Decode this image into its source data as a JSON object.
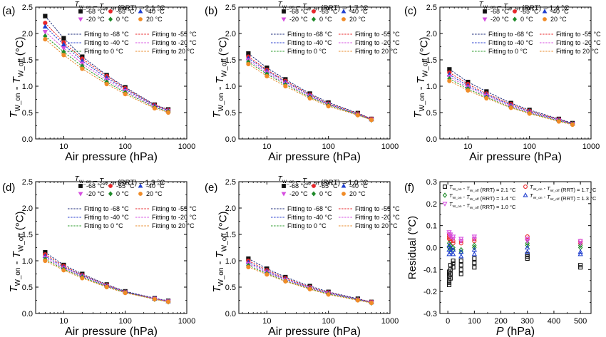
{
  "figure": {
    "x_label": "Air pressure (hPa)",
    "y_label": "T_W_on - T_W_off (°C)",
    "legend_markers": [
      "-68 °C",
      "-55 °C",
      "-40 °C",
      "-20 °C",
      "0 °C",
      "20 °C"
    ],
    "legend_fits": [
      "Fitting to -68 °C",
      "Fitting to -55 °C",
      "Fitting to -40 °C",
      "Fitting to -20 °C",
      "Fitting to   0 °C",
      "Fitting to  20 °C"
    ],
    "colors": {
      "-68": "#111111",
      "-55": "#e8262a",
      "-40": "#1f3fcf",
      "-20": "#d64fe0",
      "0": "#1f8a2a",
      "20": "#f08c28"
    },
    "fit_colors": {
      "-68": "#1b2a7a",
      "-55": "#e8262a",
      "-40": "#2a3fcf",
      "-20": "#d64fe0",
      "0": "#2a9a2a",
      "20": "#e88a2a"
    }
  },
  "chart_data": [
    {
      "type": "scatter",
      "panel": "(a)",
      "title": "T_W_on – T_W_off (RRT) = 2.1 °C",
      "xlabel": "Air pressure (hPa)",
      "ylabel": "T_W_on - T_W_off (°C)",
      "xscale": "log",
      "xlim": [
        3.5,
        1000
      ],
      "ylim": [
        0,
        2.5
      ],
      "xticks": [
        10,
        100,
        1000
      ],
      "yticks": [
        0.0,
        0.5,
        1.0,
        1.5,
        2.0,
        2.5
      ],
      "x": [
        5,
        10,
        20,
        50,
        100,
        300,
        500
      ],
      "series": [
        {
          "name": "-68 °C",
          "marker": "square",
          "values": [
            2.33,
            1.91,
            1.56,
            1.21,
            0.98,
            0.65,
            0.56
          ]
        },
        {
          "name": "-55 °C",
          "marker": "circle",
          "values": [
            2.2,
            1.83,
            1.52,
            1.19,
            0.96,
            0.64,
            0.55
          ]
        },
        {
          "name": "-40 °C",
          "marker": "triangle-up",
          "values": [
            2.13,
            1.79,
            1.48,
            1.16,
            0.94,
            0.63,
            0.54
          ]
        },
        {
          "name": "-20 °C",
          "marker": "triangle-down",
          "values": [
            2.03,
            1.72,
            1.43,
            1.12,
            0.91,
            0.61,
            0.53
          ]
        },
        {
          "name": "0 °C",
          "marker": "diamond",
          "values": [
            1.95,
            1.65,
            1.38,
            1.08,
            0.88,
            0.6,
            0.52
          ]
        },
        {
          "name": "20 °C",
          "marker": "circle-filled",
          "values": [
            1.89,
            1.59,
            1.33,
            1.04,
            0.85,
            0.58,
            0.5
          ]
        }
      ]
    },
    {
      "type": "scatter",
      "panel": "(b)",
      "title": "T_W_on – T_W_off (RRT) = 1.7 °C",
      "xlabel": "Air pressure (hPa)",
      "ylabel": "T_W_on - T_W_off (°C)",
      "xscale": "log",
      "xlim": [
        3.5,
        1000
      ],
      "ylim": [
        0,
        2.5
      ],
      "xticks": [
        10,
        100,
        1000
      ],
      "yticks": [
        0.0,
        0.5,
        1.0,
        1.5,
        2.0,
        2.5
      ],
      "x": [
        5,
        10,
        20,
        50,
        100,
        300,
        500
      ],
      "series": [
        {
          "name": "-68 °C",
          "marker": "square",
          "values": [
            1.62,
            1.35,
            1.13,
            0.86,
            0.69,
            0.49,
            0.38
          ]
        },
        {
          "name": "-55 °C",
          "marker": "circle",
          "values": [
            1.56,
            1.31,
            1.1,
            0.84,
            0.67,
            0.48,
            0.38
          ]
        },
        {
          "name": "-40 °C",
          "marker": "triangle-up",
          "values": [
            1.53,
            1.29,
            1.08,
            0.83,
            0.66,
            0.47,
            0.37
          ]
        },
        {
          "name": "-20 °C",
          "marker": "triangle-down",
          "values": [
            1.49,
            1.26,
            1.05,
            0.81,
            0.65,
            0.46,
            0.37
          ]
        },
        {
          "name": "0 °C",
          "marker": "diamond",
          "values": [
            1.46,
            1.23,
            1.03,
            0.79,
            0.64,
            0.46,
            0.36
          ]
        },
        {
          "name": "20 °C",
          "marker": "circle-filled",
          "values": [
            1.42,
            1.19,
            1.0,
            0.77,
            0.62,
            0.45,
            0.36
          ]
        }
      ]
    },
    {
      "type": "scatter",
      "panel": "(c)",
      "title": "T_W_on – T_W_off (RRT) = 1.4 °C",
      "xlabel": "Air pressure (hPa)",
      "ylabel": "T_W_on - T_W_off (°C)",
      "xscale": "log",
      "xlim": [
        3.5,
        1000
      ],
      "ylim": [
        0,
        2.5
      ],
      "xticks": [
        10,
        100,
        1000
      ],
      "yticks": [
        0.0,
        0.5,
        1.0,
        1.5,
        2.0,
        2.5
      ],
      "x": [
        5,
        10,
        20,
        50,
        100,
        300,
        500
      ],
      "series": [
        {
          "name": "-68 °C",
          "marker": "square",
          "values": [
            1.32,
            1.08,
            0.9,
            0.68,
            0.55,
            0.38,
            0.3
          ]
        },
        {
          "name": "-55 °C",
          "marker": "circle",
          "values": [
            1.26,
            1.04,
            0.86,
            0.66,
            0.53,
            0.37,
            0.29
          ]
        },
        {
          "name": "-40 °C",
          "marker": "triangle-up",
          "values": [
            1.22,
            1.01,
            0.84,
            0.64,
            0.52,
            0.36,
            0.29
          ]
        },
        {
          "name": "-20 °C",
          "marker": "triangle-down",
          "values": [
            1.18,
            0.98,
            0.82,
            0.62,
            0.5,
            0.35,
            0.28
          ]
        },
        {
          "name": "0 °C",
          "marker": "diamond",
          "values": [
            1.14,
            0.95,
            0.79,
            0.6,
            0.49,
            0.34,
            0.28
          ]
        },
        {
          "name": "20 °C",
          "marker": "circle-filled",
          "values": [
            1.1,
            0.92,
            0.77,
            0.59,
            0.48,
            0.33,
            0.27
          ]
        }
      ]
    },
    {
      "type": "scatter",
      "panel": "(d)",
      "title": "T_W_on – T_W_off (RRT) = 1.3 °C",
      "xlabel": "Air pressure (hPa)",
      "ylabel": "T_W_on - T_W_off (°C)",
      "xscale": "log",
      "xlim": [
        3.5,
        1000
      ],
      "ylim": [
        0,
        2.5
      ],
      "xticks": [
        10,
        100,
        1000
      ],
      "yticks": [
        0.0,
        0.5,
        1.0,
        1.5,
        2.0,
        2.5
      ],
      "x": [
        5,
        10,
        20,
        50,
        100,
        300,
        500
      ],
      "series": [
        {
          "name": "-68 °C",
          "marker": "square",
          "values": [
            1.16,
            0.92,
            0.75,
            0.55,
            0.42,
            0.29,
            0.24
          ]
        },
        {
          "name": "-55 °C",
          "marker": "circle",
          "values": [
            1.12,
            0.9,
            0.73,
            0.54,
            0.41,
            0.28,
            0.23
          ]
        },
        {
          "name": "-40 °C",
          "marker": "triangle-up",
          "values": [
            1.09,
            0.88,
            0.72,
            0.53,
            0.41,
            0.28,
            0.23
          ]
        },
        {
          "name": "-20 °C",
          "marker": "triangle-down",
          "values": [
            1.06,
            0.86,
            0.7,
            0.52,
            0.4,
            0.28,
            0.23
          ]
        },
        {
          "name": "0 °C",
          "marker": "diamond",
          "values": [
            1.03,
            0.84,
            0.69,
            0.51,
            0.4,
            0.27,
            0.22
          ]
        },
        {
          "name": "20 °C",
          "marker": "circle-filled",
          "values": [
            1.0,
            0.82,
            0.67,
            0.5,
            0.39,
            0.27,
            0.22
          ]
        }
      ]
    },
    {
      "type": "scatter",
      "panel": "(e)",
      "title": "T_W_on – T_W_off (RRT) = 1.0 °C",
      "xlabel": "Air pressure (hPa)",
      "ylabel": "T_W_on - T_W_off (°C)",
      "xscale": "log",
      "xlim": [
        3.5,
        1000
      ],
      "ylim": [
        0,
        2.5
      ],
      "xticks": [
        10,
        100,
        1000
      ],
      "yticks": [
        0.0,
        0.5,
        1.0,
        1.5,
        2.0,
        2.5
      ],
      "x": [
        5,
        10,
        20,
        50,
        100,
        300,
        500
      ],
      "series": [
        {
          "name": "-68 °C",
          "marker": "square",
          "values": [
            1.04,
            0.85,
            0.69,
            0.52,
            0.41,
            0.28,
            0.22
          ]
        },
        {
          "name": "-55 °C",
          "marker": "circle",
          "values": [
            1.0,
            0.82,
            0.67,
            0.5,
            0.4,
            0.27,
            0.22
          ]
        },
        {
          "name": "-40 °C",
          "marker": "triangle-up",
          "values": [
            0.97,
            0.8,
            0.65,
            0.49,
            0.39,
            0.27,
            0.21
          ]
        },
        {
          "name": "-20 °C",
          "marker": "triangle-down",
          "values": [
            0.94,
            0.78,
            0.64,
            0.48,
            0.38,
            0.26,
            0.21
          ]
        },
        {
          "name": "0 °C",
          "marker": "diamond",
          "values": [
            0.91,
            0.76,
            0.62,
            0.47,
            0.37,
            0.26,
            0.2
          ]
        },
        {
          "name": "20 °C",
          "marker": "circle-filled",
          "values": [
            0.88,
            0.74,
            0.61,
            0.46,
            0.36,
            0.25,
            0.2
          ]
        }
      ]
    },
    {
      "type": "scatter",
      "panel": "(f)",
      "xlabel": "P (hPa)",
      "ylabel": "Residual (°C)",
      "xlim": [
        -30,
        540
      ],
      "ylim": [
        -0.3,
        0.3
      ],
      "xticks": [
        0,
        100,
        200,
        300,
        400,
        500
      ],
      "yticks": [
        -0.3,
        -0.2,
        -0.1,
        0.0,
        0.1,
        0.2,
        0.3
      ],
      "legend": [
        "T_W_on - T_W_off (RRT) = 2.1 °C",
        "T_W_on - T_W_off (RRT) = 1.7 °C",
        "T_W_on - T_W_off (RRT) = 1.4 °C",
        "T_W_on - T_W_off (RRT) = 1.3 °C",
        "T_W_on - T_W_off (RRT) = 1.0 °C"
      ],
      "x": [
        5,
        10,
        20,
        50,
        100,
        300,
        500
      ],
      "series": [
        {
          "name": "T_W_on - T_W_off (RRT) = 2.1 °C",
          "marker": "square-open",
          "color": "#111111",
          "points": [
            [
              5,
              -0.16
            ],
            [
              5,
              -0.17
            ],
            [
              5,
              -0.15
            ],
            [
              5,
              -0.13
            ],
            [
              5,
              -0.12
            ],
            [
              5,
              -0.11
            ],
            [
              10,
              -0.14
            ],
            [
              10,
              -0.12
            ],
            [
              10,
              -0.1
            ],
            [
              10,
              -0.08
            ],
            [
              20,
              -0.09
            ],
            [
              20,
              -0.07
            ],
            [
              20,
              -0.06
            ],
            [
              50,
              -0.12
            ],
            [
              50,
              -0.1
            ],
            [
              50,
              -0.08
            ],
            [
              50,
              -0.06
            ],
            [
              100,
              -0.09
            ],
            [
              100,
              -0.07
            ],
            [
              100,
              -0.05
            ],
            [
              300,
              -0.05
            ],
            [
              300,
              -0.04
            ],
            [
              300,
              -0.03
            ],
            [
              500,
              -0.09
            ],
            [
              500,
              -0.08
            ]
          ]
        },
        {
          "name": "T_W_on - T_W_off (RRT) = 1.7 °C",
          "marker": "circle-open",
          "color": "#e8262a",
          "points": [
            [
              5,
              0.06
            ],
            [
              5,
              0.05
            ],
            [
              5,
              0.04
            ],
            [
              10,
              0.04
            ],
            [
              10,
              0.03
            ],
            [
              20,
              0.03
            ],
            [
              20,
              0.02
            ],
            [
              50,
              0.03
            ],
            [
              50,
              0.02
            ],
            [
              100,
              0.04
            ],
            [
              100,
              0.03
            ],
            [
              300,
              0.05
            ],
            [
              300,
              0.04
            ],
            [
              500,
              0.03
            ],
            [
              500,
              0.02
            ]
          ]
        },
        {
          "name": "T_W_on - T_W_off (RRT) = 1.4 °C",
          "marker": "diamond-open",
          "color": "#1f8a2a",
          "points": [
            [
              5,
              0.02
            ],
            [
              5,
              0.0
            ],
            [
              10,
              0.01
            ],
            [
              10,
              -0.01
            ],
            [
              20,
              0.0
            ],
            [
              20,
              -0.01
            ],
            [
              50,
              -0.01
            ],
            [
              50,
              -0.02
            ],
            [
              100,
              0.01
            ],
            [
              100,
              0.0
            ],
            [
              300,
              0.02
            ],
            [
              300,
              0.01
            ],
            [
              500,
              0.01
            ],
            [
              500,
              0.0
            ]
          ]
        },
        {
          "name": "T_W_on - T_W_off (RRT) = 1.3 °C",
          "marker": "triangle-up-open",
          "color": "#1f3fcf",
          "points": [
            [
              5,
              0.01
            ],
            [
              5,
              -0.01
            ],
            [
              5,
              -0.03
            ],
            [
              10,
              0.0
            ],
            [
              10,
              -0.02
            ],
            [
              20,
              -0.01
            ],
            [
              20,
              -0.03
            ],
            [
              50,
              -0.02
            ],
            [
              50,
              -0.04
            ],
            [
              100,
              -0.01
            ],
            [
              100,
              -0.03
            ],
            [
              300,
              0.0
            ],
            [
              300,
              -0.02
            ],
            [
              500,
              -0.02
            ],
            [
              500,
              -0.03
            ]
          ]
        },
        {
          "name": "T_W_on - T_W_off (RRT) = 1.0 °C",
          "marker": "triangle-down-open",
          "color": "#d64fe0",
          "points": [
            [
              5,
              0.07
            ],
            [
              5,
              0.06
            ],
            [
              10,
              0.06
            ],
            [
              10,
              0.05
            ],
            [
              20,
              0.05
            ],
            [
              20,
              0.04
            ],
            [
              50,
              0.04
            ],
            [
              50,
              0.03
            ],
            [
              100,
              0.05
            ],
            [
              100,
              0.04
            ],
            [
              300,
              0.04
            ],
            [
              300,
              0.03
            ],
            [
              500,
              0.03
            ],
            [
              500,
              0.02
            ]
          ]
        }
      ]
    }
  ]
}
